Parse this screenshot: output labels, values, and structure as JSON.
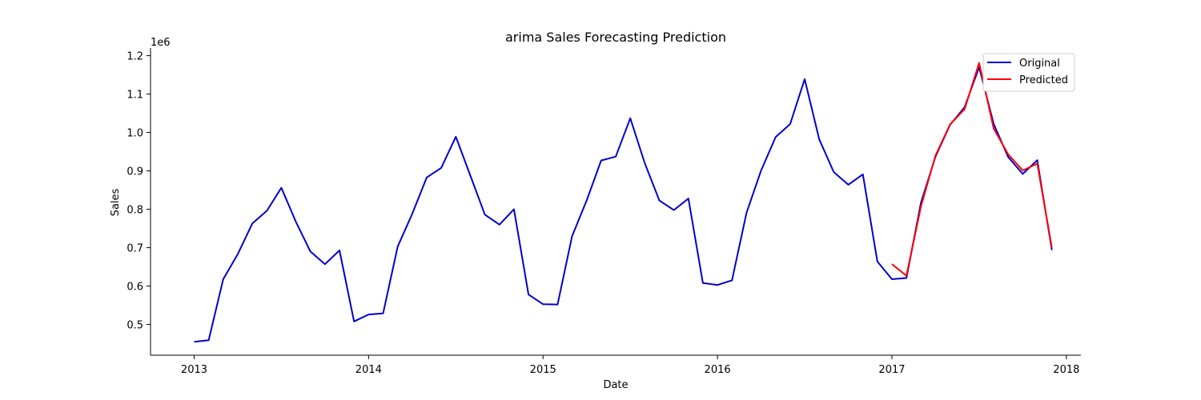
{
  "chart_data": {
    "type": "line",
    "title": "arima Sales Forecasting Prediction",
    "xlabel": "Date",
    "ylabel": "Sales",
    "y_offset_label": "1e6",
    "xlim": [
      "2012-10-01",
      "2018-02-01"
    ],
    "ylim": [
      0.42,
      1.22
    ],
    "x_ticks": [
      "2013",
      "2014",
      "2015",
      "2016",
      "2017",
      "2018"
    ],
    "y_ticks": [
      "0.5",
      "0.6",
      "0.7",
      "0.8",
      "0.9",
      "1.0",
      "1.1",
      "1.2"
    ],
    "grid": false,
    "legend_position": "top-right",
    "series": [
      {
        "name": "Original",
        "color": "#0000cc",
        "x": [
          "2013-01",
          "2013-02",
          "2013-03",
          "2013-04",
          "2013-05",
          "2013-06",
          "2013-07",
          "2013-08",
          "2013-09",
          "2013-10",
          "2013-11",
          "2013-12",
          "2014-01",
          "2014-02",
          "2014-03",
          "2014-04",
          "2014-05",
          "2014-06",
          "2014-07",
          "2014-08",
          "2014-09",
          "2014-10",
          "2014-11",
          "2014-12",
          "2015-01",
          "2015-02",
          "2015-03",
          "2015-04",
          "2015-05",
          "2015-06",
          "2015-07",
          "2015-08",
          "2015-09",
          "2015-10",
          "2015-11",
          "2015-12",
          "2016-01",
          "2016-02",
          "2016-03",
          "2016-04",
          "2016-05",
          "2016-06",
          "2016-07",
          "2016-08",
          "2016-09",
          "2016-10",
          "2016-11",
          "2016-12",
          "2017-01",
          "2017-02",
          "2017-03",
          "2017-04",
          "2017-05",
          "2017-06",
          "2017-07",
          "2017-08",
          "2017-09",
          "2017-10",
          "2017-11",
          "2017-12"
        ],
        "values": [
          0.455,
          0.459,
          0.618,
          0.683,
          0.763,
          0.796,
          0.856,
          0.767,
          0.69,
          0.657,
          0.693,
          0.508,
          0.526,
          0.529,
          0.703,
          0.788,
          0.883,
          0.908,
          0.989,
          0.888,
          0.786,
          0.76,
          0.8,
          0.578,
          0.553,
          0.552,
          0.73,
          0.823,
          0.927,
          0.937,
          1.037,
          0.92,
          0.823,
          0.798,
          0.828,
          0.608,
          0.603,
          0.615,
          0.791,
          0.901,
          0.988,
          1.022,
          1.139,
          0.982,
          0.897,
          0.864,
          0.891,
          0.664,
          0.618,
          0.621,
          0.818,
          0.937,
          1.02,
          1.066,
          1.17,
          1.022,
          0.936,
          0.892,
          0.928,
          0.694
        ]
      },
      {
        "name": "Predicted",
        "color": "#ff0000",
        "x": [
          "2017-01",
          "2017-02",
          "2017-03",
          "2017-04",
          "2017-05",
          "2017-06",
          "2017-07",
          "2017-08",
          "2017-09",
          "2017-10",
          "2017-11",
          "2017-12"
        ],
        "values": [
          0.657,
          0.627,
          0.808,
          0.94,
          1.021,
          1.061,
          1.181,
          1.01,
          0.943,
          0.901,
          0.919,
          0.7
        ]
      }
    ]
  }
}
